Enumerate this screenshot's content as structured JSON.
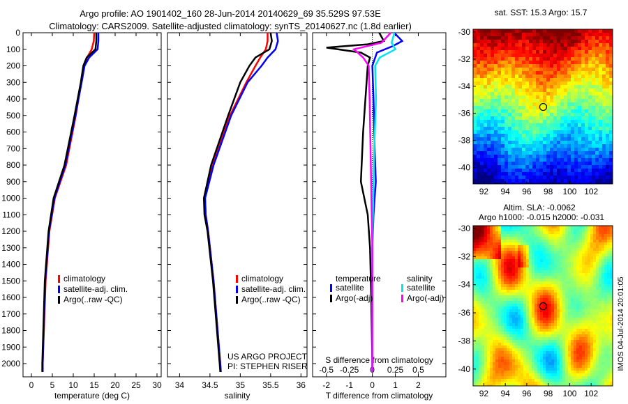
{
  "header": {
    "title_line1": "Argo profile: AO 1901402_160 28-Jun-2014 20140629_69 35.529S 97.53E",
    "title_line2": "Climatology: CARS2009. Satellite-adjusted climatology: synTS_20140627.nc (1.8d earlier)"
  },
  "side_stamp": "IMOS 04-Jul-2014 20:01:05",
  "colors": {
    "climatology": "#ff0000",
    "satellite": "#0000ff",
    "argo": "#000000",
    "salinity_satellite": "#00e5ee",
    "salinity_argo": "#ff00ff"
  },
  "chart_data": [
    {
      "id": "temperature",
      "type": "line",
      "xlabel": "temperature (deg C)",
      "xlim": [
        -2,
        31
      ],
      "ylim": [
        2080,
        0
      ],
      "xticks": [
        0,
        5,
        10,
        15,
        20,
        25,
        30
      ],
      "yticks": [
        0,
        100,
        200,
        300,
        400,
        500,
        600,
        700,
        800,
        900,
        1000,
        1100,
        1200,
        1300,
        1400,
        1500,
        1600,
        1700,
        1800,
        1900,
        2000
      ],
      "legend": [
        "climatology",
        "satellite-adj. clim.",
        "Argo(..raw -QC)"
      ],
      "series": [
        {
          "name": "climatology",
          "depth": [
            0,
            50,
            100,
            150,
            200,
            300,
            500,
            800,
            1000,
            1200,
            1500,
            2000,
            2050
          ],
          "values": [
            15.0,
            14.9,
            14.4,
            13.3,
            12.6,
            11.9,
            10.6,
            8.3,
            5.6,
            4.3,
            3.4,
            2.7,
            2.7
          ]
        },
        {
          "name": "satellite-adj. clim.",
          "depth": [
            0,
            50,
            100,
            150,
            200,
            300,
            500,
            800,
            1000,
            1200,
            1500,
            2000,
            2050
          ],
          "values": [
            16.0,
            16.0,
            15.8,
            13.8,
            12.7,
            12.0,
            10.5,
            8.1,
            5.5,
            4.2,
            3.3,
            2.7,
            2.7
          ]
        },
        {
          "name": "Argo(..raw -QC)",
          "depth": [
            0,
            50,
            100,
            150,
            200,
            300,
            500,
            800,
            1000,
            1200,
            1500,
            2000,
            2050
          ],
          "values": [
            15.5,
            15.5,
            15.3,
            13.2,
            12.4,
            11.8,
            10.3,
            7.9,
            5.3,
            4.1,
            3.2,
            2.6,
            2.6
          ]
        }
      ]
    },
    {
      "id": "salinity",
      "type": "line",
      "xlabel": "salinity",
      "xlim": [
        33.8,
        36.1
      ],
      "ylim": [
        2080,
        0
      ],
      "xticks": [
        34,
        34.5,
        35,
        35.5,
        36
      ],
      "legend": [
        "climatology",
        "satellite-adj. clim.",
        "Argo(..raw -QC)"
      ],
      "annotations": [
        "US ARGO PROJECT",
        "PI: STEPHEN RISER"
      ],
      "series": [
        {
          "name": "climatology",
          "depth": [
            0,
            50,
            100,
            150,
            200,
            300,
            500,
            800,
            1000,
            1100,
            1200,
            1500,
            2000,
            2050
          ],
          "values": [
            35.45,
            35.45,
            35.42,
            35.33,
            35.25,
            35.1,
            34.83,
            34.55,
            34.42,
            34.43,
            34.47,
            34.56,
            34.67,
            34.68
          ]
        },
        {
          "name": "satellite-adj. clim.",
          "depth": [
            0,
            50,
            100,
            150,
            200,
            300,
            500,
            800,
            1000,
            1100,
            1200,
            1500,
            2000,
            2050
          ],
          "values": [
            35.6,
            35.62,
            35.58,
            35.45,
            35.35,
            35.12,
            34.85,
            34.56,
            34.42,
            34.43,
            34.47,
            34.56,
            34.67,
            34.68
          ]
        },
        {
          "name": "Argo(..raw -QC)",
          "depth": [
            0,
            50,
            100,
            150,
            200,
            300,
            500,
            800,
            1000,
            1100,
            1200,
            1500,
            2000,
            2050
          ],
          "values": [
            35.5,
            35.52,
            35.48,
            35.25,
            35.15,
            35.0,
            34.8,
            34.52,
            34.4,
            34.41,
            34.46,
            34.55,
            34.66,
            34.67
          ]
        }
      ]
    },
    {
      "id": "difference",
      "type": "line",
      "xlabel": "T difference from climatology",
      "xlabel_top": "S difference from climatology",
      "xlim": [
        -2.6,
        3.2
      ],
      "ylim": [
        2080,
        0
      ],
      "xticks": [
        -2,
        -1,
        0,
        1,
        2
      ],
      "xticks_s": [
        "-0.5",
        "-0.25",
        "0",
        "0.25",
        "0.5"
      ],
      "legend_titles": [
        "temperature",
        "salinity"
      ],
      "legend": [
        "satellite",
        "Argo(-adj)",
        "satellite",
        "Argo(-adj)"
      ],
      "series": [
        {
          "name": "temperature satellite",
          "depth": [
            0,
            50,
            80,
            120,
            200,
            400,
            700,
            900,
            1000,
            1100,
            1300,
            1600,
            2000,
            2050
          ],
          "values": [
            0.95,
            1.3,
            0.9,
            0.2,
            0.0,
            0.05,
            0.1,
            0.15,
            0.1,
            0.05,
            0.0,
            0.0,
            0.0,
            0.0
          ]
        },
        {
          "name": "temperature Argo(-adj)",
          "depth": [
            0,
            50,
            70,
            90,
            120,
            150,
            200,
            400,
            600,
            900,
            1000,
            1100,
            1300,
            1600,
            2000,
            2050
          ],
          "values": [
            0.3,
            0.5,
            -0.2,
            -2.0,
            -0.5,
            -0.1,
            -0.2,
            -0.3,
            -0.4,
            -0.5,
            -0.35,
            -0.2,
            -0.1,
            -0.05,
            0.0,
            0.0
          ]
        },
        {
          "name": "salinity satellite",
          "depth": [
            0,
            60,
            100,
            150,
            200,
            400,
            700,
            1000,
            1300,
            1600,
            2000,
            2050
          ],
          "values": [
            0.24,
            0.21,
            0.25,
            0.08,
            0.03,
            0.04,
            0.02,
            0.01,
            0.0,
            0.0,
            0.0,
            0.0
          ]
        },
        {
          "name": "salinity Argo(-adj)",
          "depth": [
            0,
            60,
            100,
            150,
            200,
            400,
            700,
            1000,
            1300,
            1600,
            2000,
            2050
          ],
          "values": [
            0.2,
            0.1,
            -0.2,
            -0.1,
            -0.04,
            -0.03,
            -0.02,
            -0.01,
            0.0,
            0.0,
            0.0,
            0.0
          ]
        }
      ]
    },
    {
      "id": "sst_map",
      "type": "heatmap",
      "title": "sat. SST: 15.3  Argo: 15.7",
      "xlim": [
        91,
        104
      ],
      "ylim": [
        -41.2,
        -29.8
      ],
      "xticks": [
        92,
        94,
        96,
        98,
        100,
        102
      ],
      "yticks": [
        -30,
        -32,
        -34,
        -36,
        -38,
        -40
      ],
      "marker": {
        "lon": 97.53,
        "lat": -35.529
      }
    },
    {
      "id": "sla_map",
      "type": "heatmap",
      "title": "Altim. SLA: -0.0062",
      "subtitle": "Argo h1000: -0.015 h2000: -0.031",
      "xlim": [
        91,
        104
      ],
      "ylim": [
        -41.2,
        -29.8
      ],
      "xticks": [
        92,
        94,
        96,
        98,
        100,
        102
      ],
      "yticks": [
        -30,
        -32,
        -34,
        -36,
        -38,
        -40
      ],
      "marker": {
        "lon": 97.53,
        "lat": -35.529
      }
    }
  ]
}
